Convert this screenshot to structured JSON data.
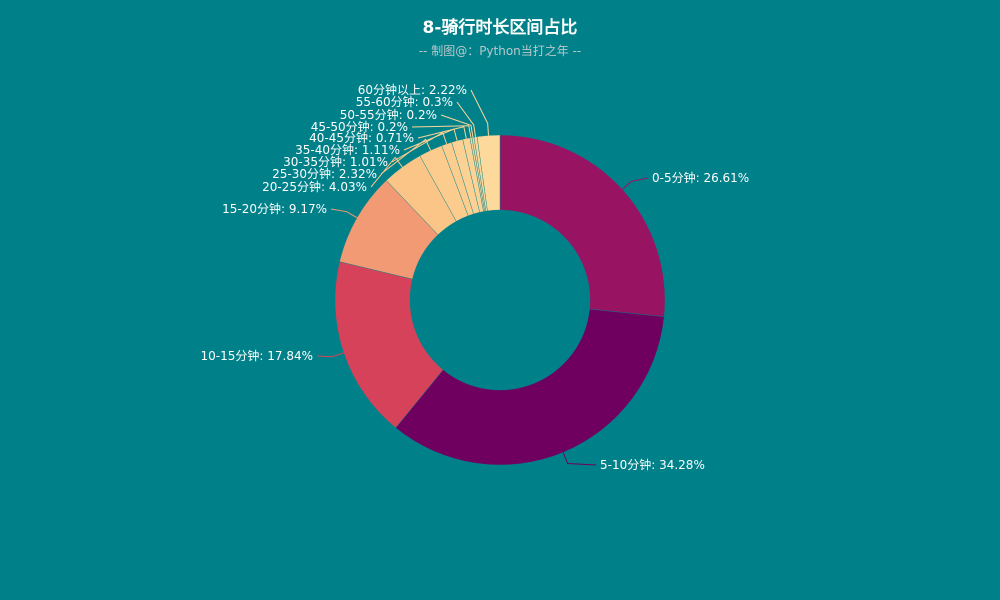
{
  "chart_data": {
    "type": "pie",
    "title": "8-骑行时长区间占比",
    "subtitle": "-- 制图@：Python当打之年 --",
    "slices": [
      {
        "name": "0-5分钟",
        "value": 26.61,
        "label": "0-5分钟: 26.61%",
        "color": "#981462"
      },
      {
        "name": "5-10分钟",
        "value": 34.28,
        "label": "5-10分钟: 34.28%",
        "color": "#6f005f"
      },
      {
        "name": "10-15分钟",
        "value": 17.84,
        "label": "10-15分钟: 17.84%",
        "color": "#d64259"
      },
      {
        "name": "15-20分钟",
        "value": 9.17,
        "label": "15-20分钟: 9.17%",
        "color": "#f29a74"
      },
      {
        "name": "20-25分钟",
        "value": 4.03,
        "label": "20-25分钟: 4.03%",
        "color": "#fbc588"
      },
      {
        "name": "25-30分钟",
        "value": 2.32,
        "label": "25-30分钟: 2.32%",
        "color": "#fbcc8d"
      },
      {
        "name": "30-35分钟",
        "value": 1.01,
        "label": "30-35分钟: 1.01%",
        "color": "#fbce90"
      },
      {
        "name": "35-40分钟",
        "value": 1.11,
        "label": "35-40分钟: 1.11%",
        "color": "#fcd194"
      },
      {
        "name": "40-45分钟",
        "value": 0.71,
        "label": "40-45分钟: 0.71%",
        "color": "#fcd396"
      },
      {
        "name": "45-50分钟",
        "value": 0.2,
        "label": "45-50分钟: 0.2%",
        "color": "#fcd598"
      },
      {
        "name": "50-55分钟",
        "value": 0.2,
        "label": "50-55分钟: 0.2%",
        "color": "#fcd699"
      },
      {
        "name": "55-60分钟",
        "value": 0.3,
        "label": "55-60分钟: 0.3%",
        "color": "#fdd79a"
      },
      {
        "name": "60分钟以上",
        "value": 2.22,
        "label": "60分钟以上: 2.22%",
        "color": "#fdd99c"
      }
    ]
  }
}
